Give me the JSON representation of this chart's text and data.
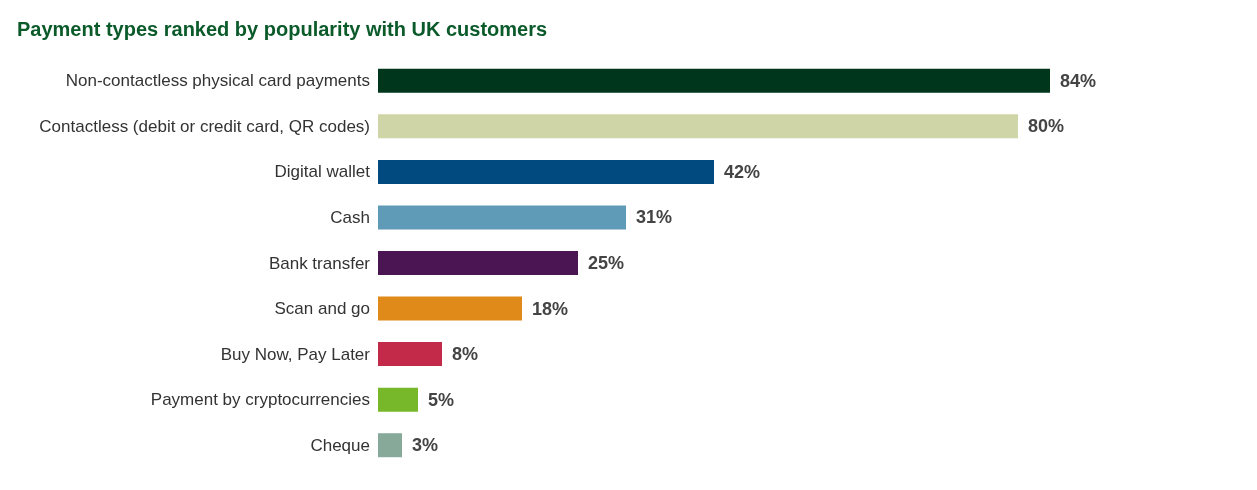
{
  "chart_data": {
    "type": "bar",
    "orientation": "horizontal",
    "title": "Payment types ranked by popularity with UK customers",
    "categories": [
      "Non-contactless physical card payments",
      "Contactless (debit or credit card, QR codes)",
      "Digital wallet",
      "Cash",
      "Bank transfer",
      "Scan and go",
      "Buy Now, Pay Later",
      "Payment by cryptocurrencies",
      "Cheque"
    ],
    "values": [
      84,
      80,
      42,
      31,
      25,
      18,
      8,
      5,
      3
    ],
    "colors": [
      "#00361c",
      "#d0d5a8",
      "#004a80",
      "#5f9ab7",
      "#4a1552",
      "#e08a1a",
      "#c32a4a",
      "#77b82a",
      "#86a99a"
    ],
    "value_labels": [
      "84%",
      "80%",
      "42%",
      "31%",
      "25%",
      "18%",
      "8%",
      "5%",
      "3%"
    ]
  }
}
